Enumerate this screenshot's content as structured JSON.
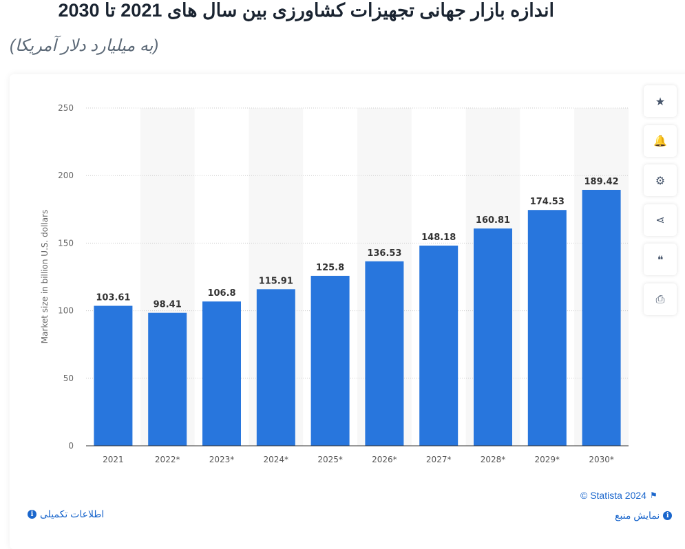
{
  "header": {
    "title": "اندازه بازار جهانی تجهیزات کشاورزی بین سال های 2021 تا 2030",
    "subtitle": "(به میلیارد دلار آمریکا)"
  },
  "toolbar": [
    {
      "icon": "star-icon",
      "glyph": "★"
    },
    {
      "icon": "bell-icon",
      "glyph": "🔔"
    },
    {
      "icon": "gear-icon",
      "glyph": "⚙"
    },
    {
      "icon": "share-icon",
      "glyph": "⋖"
    },
    {
      "icon": "quote-icon",
      "glyph": "❝"
    },
    {
      "icon": "print-icon",
      "glyph": "⎙"
    }
  ],
  "footer": {
    "copyright": "© Statista 2024",
    "show_source": "نمایش منبع",
    "more_info": "اطلاعات تکمیلی"
  },
  "colors": {
    "bar": "#2876dd",
    "shade": "#f7f7f7",
    "link": "#1a66cc"
  },
  "chart_data": {
    "type": "bar",
    "categories": [
      "2021",
      "2022*",
      "2023*",
      "2024*",
      "2025*",
      "2026*",
      "2027*",
      "2028*",
      "2029*",
      "2030*"
    ],
    "values": [
      103.61,
      98.41,
      106.8,
      115.91,
      125.8,
      136.53,
      148.18,
      160.81,
      174.53,
      189.42
    ],
    "value_labels": [
      "103.61",
      "98.41",
      "106.8",
      "115.91",
      "125.8",
      "136.53",
      "148.18",
      "160.81",
      "174.53",
      "189.42"
    ],
    "ylabel": "Market size in billion U.S. dollars",
    "ylim": [
      0,
      250
    ],
    "yticks": [
      0,
      50,
      100,
      150,
      200,
      250
    ],
    "grid": true
  }
}
